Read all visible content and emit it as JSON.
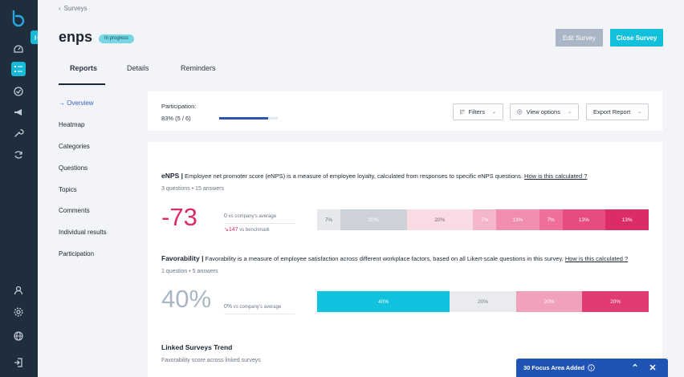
{
  "nav": {
    "items": [
      {
        "name": "dashboard-icon"
      },
      {
        "name": "surveys-icon"
      },
      {
        "name": "goals-icon"
      },
      {
        "name": "announcements-icon"
      },
      {
        "name": "tools-icon"
      },
      {
        "name": "sync-icon"
      },
      {
        "name": "user-icon"
      },
      {
        "name": "settings-icon"
      },
      {
        "name": "globe-icon"
      },
      {
        "name": "logout-icon"
      }
    ],
    "active_item": "surveys-icon"
  },
  "header": {
    "breadcrumb": "Surveys",
    "title": "enps",
    "status_badge": "In progress",
    "edit_button": "Edit Survey",
    "close_button": "Close Survey",
    "tabs": [
      "Reports",
      "Details",
      "Reminders"
    ],
    "active_tab": "Reports"
  },
  "subnav": {
    "items": [
      "Overview",
      "Heatmap",
      "Categories",
      "Questions",
      "Topics",
      "Comments",
      "Individual results",
      "Participation"
    ],
    "active": "Overview"
  },
  "participation": {
    "label": "Participation:",
    "value_text": "83% (5 / 6)",
    "fraction": 0.83
  },
  "controls": {
    "filters": "Filters",
    "view_options": "View options",
    "export": "Export Report"
  },
  "enps": {
    "heading": "eNPS |",
    "description": "Employee net promoter score (eNPS) is a measure of employee loyalty, calculated from responses to specific eNPS questions.",
    "link": "How is this calculated ?",
    "meta": "3 questions • 15 answers",
    "score": "-73",
    "company_delta": "0",
    "company_label": "vs company's average",
    "benchmark_delta": "↘147",
    "benchmark_label": "vs benchmark",
    "segments": [
      {
        "label": "7%",
        "value": 7,
        "color": "#e6e8ec",
        "text": "#6b7684"
      },
      {
        "label": "20%",
        "value": 20,
        "color": "#cdd1d8",
        "text": "#ffffff"
      },
      {
        "label": "20%",
        "value": 20,
        "color": "#f9dbe4",
        "text": "#7a6470"
      },
      {
        "label": "7%",
        "value": 7,
        "color": "#f4b6c9",
        "text": "#ffffff"
      },
      {
        "label": "13%",
        "value": 13,
        "color": "#f08db0",
        "text": "#ffffff"
      },
      {
        "label": "7%",
        "value": 7,
        "color": "#ee6f99",
        "text": "#ffffff"
      },
      {
        "label": "13%",
        "value": 13,
        "color": "#e64c7f",
        "text": "#ffffff"
      },
      {
        "label": "13%",
        "value": 13,
        "color": "#dc2c65",
        "text": "#ffffff"
      }
    ]
  },
  "favorability": {
    "heading": "Favorability |",
    "description": "Favorability is a measure of employee satisfaction across different workplace factors, based on all Likert-scale questions in this survey.",
    "link": "How is this calculated ?",
    "meta": "1 question • 5 answers",
    "score": "40%",
    "company_delta": "0%",
    "company_label": "vs company's average",
    "segments": [
      {
        "label": "40%",
        "value": 40,
        "color": "#10c2de",
        "text": "#ffffff"
      },
      {
        "label": "20%",
        "value": 20,
        "color": "#e9ebef",
        "text": "#6b7684"
      },
      {
        "label": "20%",
        "value": 20,
        "color": "#f2a1bc",
        "text": "#ffffff"
      },
      {
        "label": "20%",
        "value": 20,
        "color": "#e23a72",
        "text": "#ffffff"
      }
    ]
  },
  "trend": {
    "title": "Linked Surveys Trend",
    "subtitle": "Favorability score across linked surveys"
  },
  "toast": {
    "text": "30 Focus Area Added"
  },
  "colors": {
    "rail": "#1f2e3d",
    "accent": "#12c0dc",
    "enps_score": "#dc2c65",
    "favorability_score": "#a9b6c6"
  }
}
